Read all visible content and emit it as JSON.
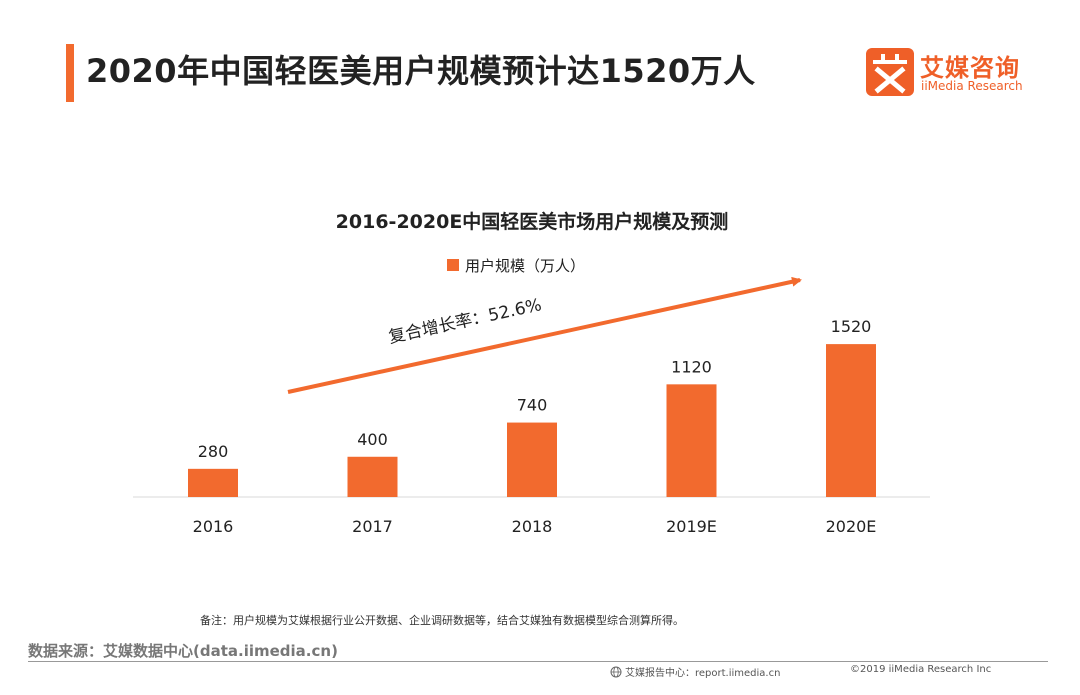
{
  "header": {
    "title": "2020年中国轻医美用户规模预计达1520万人"
  },
  "brand": {
    "name_cn": "艾媒咨询",
    "name_en": "iiMedia Research",
    "color": "#ef5f28"
  },
  "chart_data": {
    "type": "bar",
    "title": "2016-2020E中国轻医美市场用户规模及预测",
    "categories": [
      "2016",
      "2017",
      "2018",
      "2019E",
      "2020E"
    ],
    "series": [
      {
        "name": "用户规模（万人）",
        "values": [
          280,
          400,
          740,
          1120,
          1520
        ],
        "color": "#f26a2e"
      }
    ],
    "data_labels": [
      "280",
      "400",
      "740",
      "1120",
      "1520"
    ],
    "ylim": [
      0,
      1700
    ],
    "grid": false,
    "legend": "top-center",
    "annotation": "复合增长率：52.6%",
    "xlabel": "",
    "ylabel": ""
  },
  "footer": {
    "note": "备注：用户规模为艾媒根据行业公开数据、企业调研数据等，结合艾媒独有数据模型综合测算所得。",
    "source": "数据来源：艾媒数据中心(data.iimedia.cn)",
    "report_center": "艾媒报告中心：report.iimedia.cn",
    "copyright": "©2019  iiMedia Research  Inc"
  }
}
